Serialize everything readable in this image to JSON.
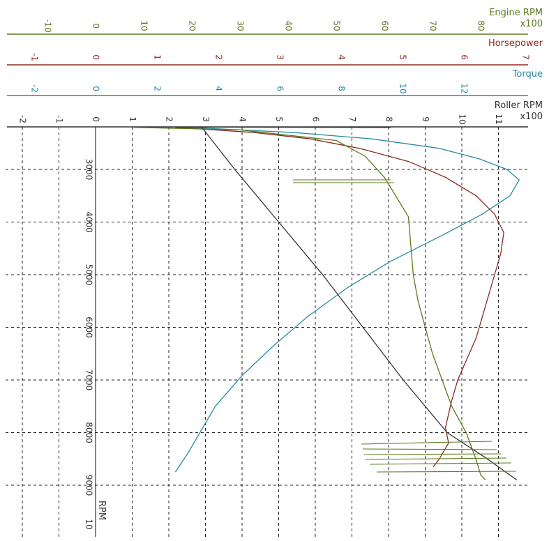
{
  "chart_data": {
    "type": "line",
    "orientation": "rotated-90",
    "background": "#ffffff",
    "grid": true,
    "axes": {
      "engine_rpm": {
        "label": "Engine RPM",
        "multiplier": "x100",
        "color": "#5a7a1e",
        "ticks": [
          "-10",
          "0",
          "10",
          "20",
          "30",
          "40",
          "50",
          "60",
          "70",
          "80"
        ],
        "range": [
          -15,
          95
        ]
      },
      "horsepower": {
        "label": "Horsepower",
        "color": "#8a2a1e",
        "ticks": [
          "-1",
          "0",
          "1",
          "2",
          "3",
          "4",
          "5",
          "6",
          "7"
        ],
        "range": [
          -1.5,
          7
        ]
      },
      "torque": {
        "label": "Torque",
        "color": "#2a8aa0",
        "ticks": [
          "-2",
          "0",
          "2",
          "4",
          "6",
          "8",
          "10",
          "12"
        ],
        "range": [
          -2.6,
          14.4
        ]
      },
      "roller_rpm": {
        "label": "Roller RPM",
        "multiplier": "x100",
        "color": "#333333",
        "ticks": [
          "-2",
          "-1",
          "0",
          "1",
          "2",
          "3",
          "4",
          "5",
          "6",
          "7",
          "8",
          "9",
          "10",
          "11"
        ],
        "range": [
          -2,
          11.5
        ]
      },
      "rpm": {
        "label": "RPM",
        "ticks": [
          "3000",
          "4000",
          "5000",
          "6000",
          "7000",
          "8000",
          "9000",
          "10"
        ],
        "range": [
          2200,
          10000
        ]
      }
    },
    "series": [
      {
        "name": "Torque",
        "color": "#2a8aa0",
        "x": [
          3,
          6.5,
          9,
          11.2,
          12.5,
          13.4,
          13.8,
          13.5,
          12.6,
          11.3,
          9.6,
          8.2,
          6.9,
          5.8,
          4.8,
          3.9,
          3.3,
          3,
          2.6
        ],
        "y": [
          2200,
          2300,
          2420,
          2600,
          2800,
          3000,
          3200,
          3500,
          3850,
          4250,
          4750,
          5250,
          5800,
          6350,
          6900,
          7500,
          8100,
          8400,
          8750
        ]
      },
      {
        "name": "Horsepower",
        "color": "#8a2a1e",
        "x": [
          1.3,
          2.6,
          3.5,
          4.3,
          5.1,
          5.7,
          6.2,
          6.5,
          6.65,
          6.6,
          6.5,
          6.4,
          6.3,
          6.2,
          6.05,
          5.9,
          5.8,
          5.7,
          5.75,
          5.6,
          5.5
        ],
        "y": [
          2200,
          2300,
          2420,
          2600,
          2850,
          3150,
          3500,
          3850,
          4200,
          4600,
          5000,
          5400,
          5800,
          6200,
          6600,
          7000,
          7400,
          7900,
          8200,
          8500,
          8650
        ]
      },
      {
        "name": "Engine RPM",
        "color": "#5a7a1e",
        "x": [
          8,
          30,
          50,
          56,
          60,
          61,
          65,
          66,
          67,
          70,
          72,
          74,
          77,
          79,
          80,
          81
        ],
        "y": [
          2200,
          2250,
          2450,
          2750,
          3150,
          3300,
          3900,
          5000,
          5500,
          6500,
          7000,
          7500,
          8000,
          8500,
          8800,
          8900
        ]
      },
      {
        "name": "Roller RPM",
        "color": "#333333",
        "x": [
          2.9,
          3.8,
          5,
          6.2,
          7.3,
          8.4,
          9.6,
          10.7,
          11.5
        ],
        "y": [
          2200,
          3000,
          4000,
          5000,
          6000,
          7000,
          8000,
          8500,
          8900
        ]
      }
    ]
  }
}
